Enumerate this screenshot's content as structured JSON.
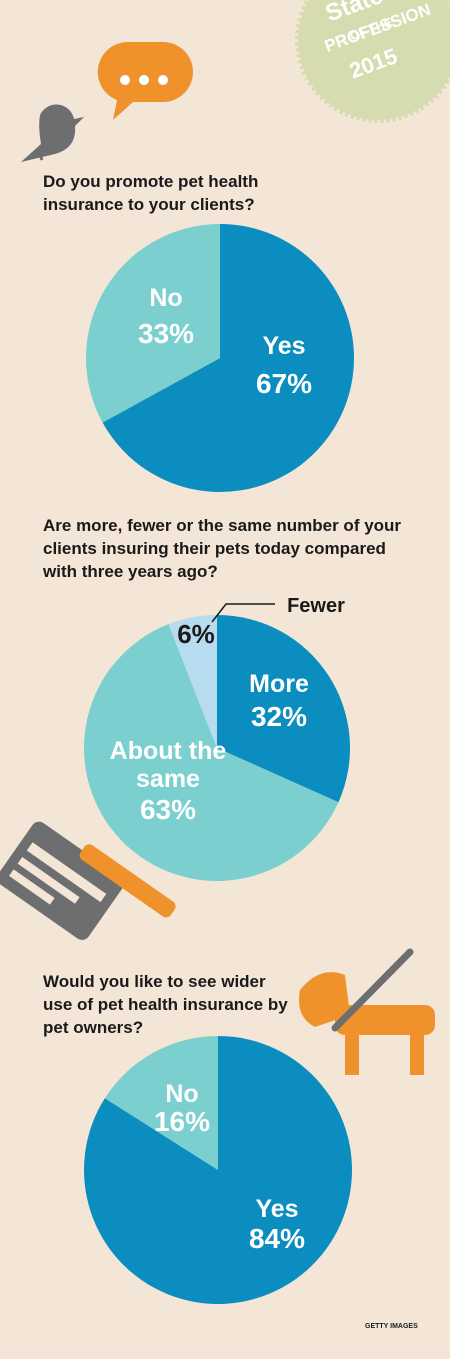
{
  "badge": {
    "lines": [
      "State",
      "OF THE",
      "PROFESSION",
      "2015"
    ]
  },
  "credit": "GETTY IMAGES",
  "chart_data": [
    {
      "type": "pie",
      "title": "Do you promote pet health insurance to your clients?",
      "categories": [
        "Yes",
        "No"
      ],
      "values": [
        67,
        33
      ],
      "value_labels": [
        "67%",
        "33%"
      ],
      "colors": [
        "#0b8dc0",
        "#7ccfcf"
      ]
    },
    {
      "type": "pie",
      "title": "Are more, fewer or the same number of your clients insuring their pets today compared with three years ago?",
      "categories": [
        "More",
        "About the same",
        "Fewer"
      ],
      "values": [
        32,
        63,
        6
      ],
      "value_labels": [
        "32%",
        "63%",
        "6%"
      ],
      "colors": [
        "#0b8dc0",
        "#7ccfcf",
        "#b8dcef"
      ]
    },
    {
      "type": "pie",
      "title": "Would you like to see wider use of pet health insurance by pet owners?",
      "categories": [
        "Yes",
        "No"
      ],
      "values": [
        84,
        16
      ],
      "value_labels": [
        "84%",
        "16%"
      ],
      "colors": [
        "#0b8dc0",
        "#7ccfcf"
      ]
    }
  ]
}
